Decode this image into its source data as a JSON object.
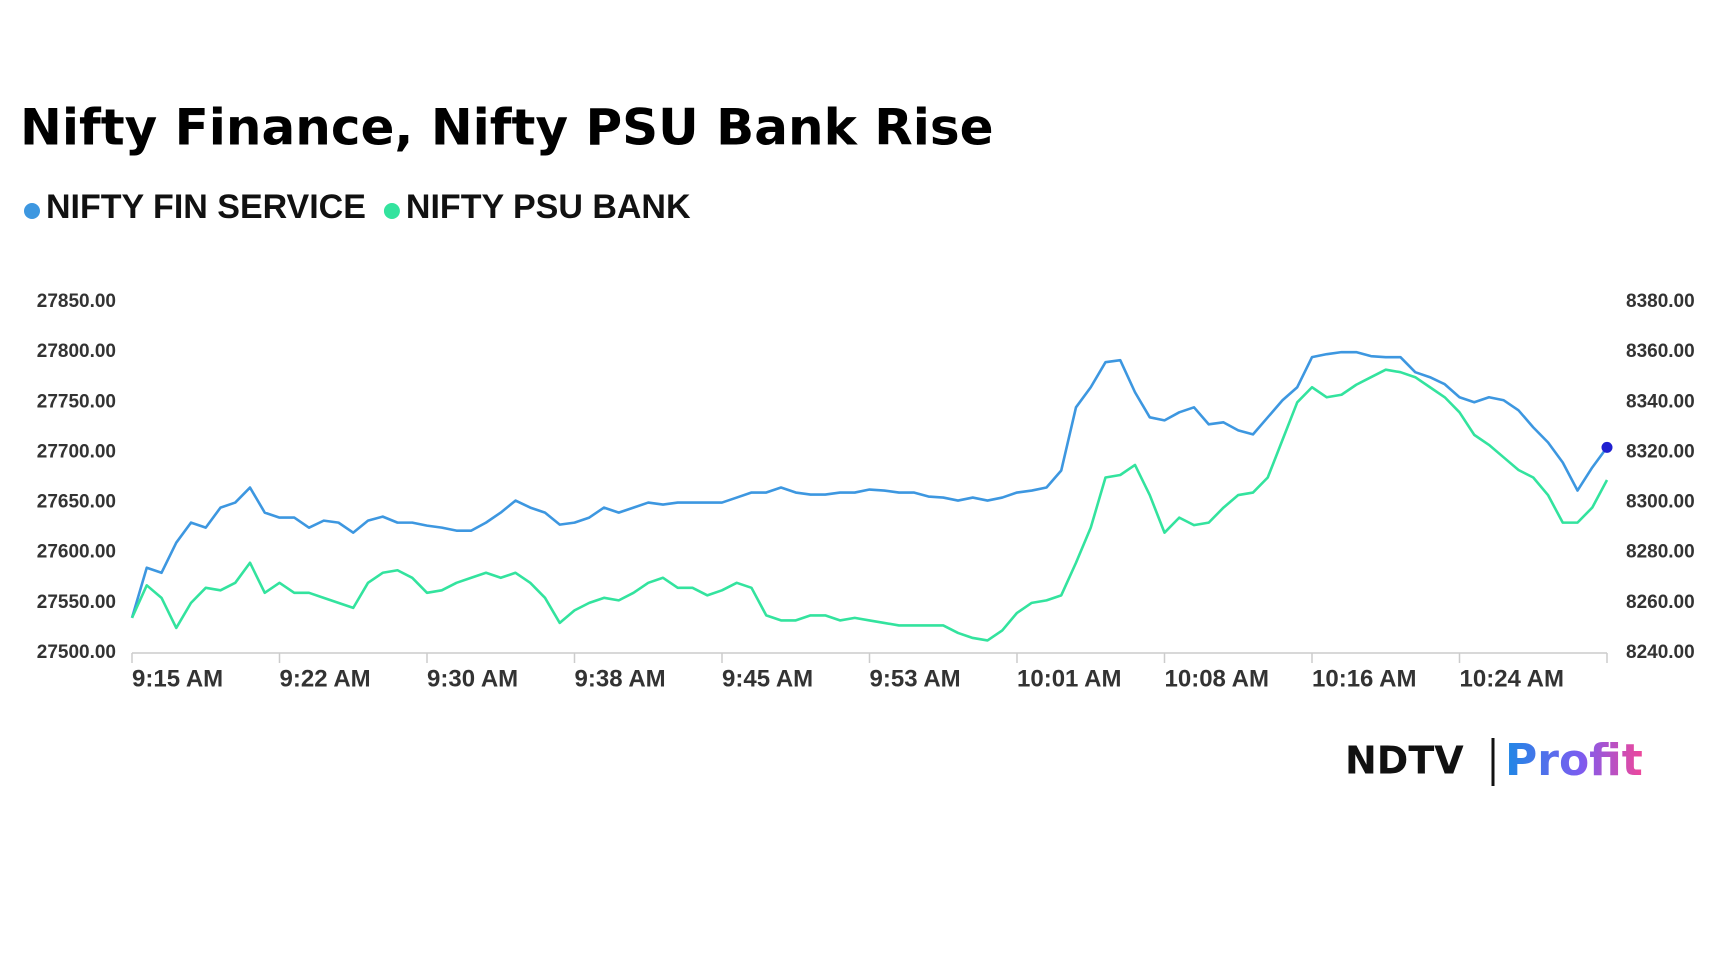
{
  "chart_data": {
    "type": "line",
    "title": "Nifty Finance, Nifty PSU Bank Rise",
    "categories": [
      "9:15 AM",
      null,
      null,
      null,
      null,
      null,
      null,
      null,
      null,
      null,
      "9:22 AM",
      null,
      null,
      null,
      null,
      null,
      null,
      null,
      null,
      null,
      "9:30 AM",
      null,
      null,
      null,
      null,
      null,
      null,
      null,
      null,
      null,
      "9:38 AM",
      null,
      null,
      null,
      null,
      null,
      null,
      null,
      null,
      null,
      "9:45 AM",
      null,
      null,
      null,
      null,
      null,
      null,
      null,
      null,
      null,
      "9:53 AM",
      null,
      null,
      null,
      null,
      null,
      null,
      null,
      null,
      null,
      "10:01 AM",
      null,
      null,
      null,
      null,
      null,
      null,
      null,
      null,
      null,
      "10:08 AM",
      null,
      null,
      null,
      null,
      null,
      null,
      null,
      null,
      null,
      "10:16 AM",
      null,
      null,
      null,
      null,
      null,
      null,
      null,
      null,
      null,
      "10:24 AM",
      null,
      null,
      null,
      null,
      null,
      null,
      null,
      null,
      null,
      null
    ],
    "series": [
      {
        "name": "NIFTY FIN SERVICE",
        "color": "#3d97e0",
        "axis": "y",
        "values": [
          27535,
          27585,
          27580,
          27610,
          27630,
          27625,
          27645,
          27650,
          27665,
          27640,
          27635,
          27635,
          27625,
          27632,
          27630,
          27620,
          27632,
          27636,
          27630,
          27630,
          27627,
          27625,
          27622,
          27622,
          27630,
          27640,
          27652,
          27645,
          27640,
          27628,
          27630,
          27635,
          27645,
          27640,
          27645,
          27650,
          27648,
          27650,
          27650,
          27650,
          27650,
          27655,
          27660,
          27660,
          27665,
          27660,
          27658,
          27658,
          27660,
          27660,
          27663,
          27662,
          27660,
          27660,
          27656,
          27655,
          27652,
          27655,
          27652,
          27655,
          27660,
          27662,
          27665,
          27682,
          27745,
          27765,
          27790,
          27792,
          27760,
          27735,
          27732,
          27740,
          27745,
          27728,
          27730,
          27722,
          27718,
          27735,
          27752,
          27765,
          27795,
          27798,
          27800,
          27800,
          27796,
          27795,
          27795,
          27780,
          27775,
          27768,
          27755,
          27750,
          27755,
          27752,
          27742,
          27725,
          27710,
          27690,
          27662,
          27685,
          27705
        ]
      },
      {
        "name": "NIFTY PSU BANK",
        "color": "#33e39e",
        "axis": "y2",
        "values": [
          8254,
          8267,
          8262,
          8250,
          8260,
          8266,
          8265,
          8268,
          8276,
          8264,
          8268,
          8264,
          8264,
          8262,
          8260,
          8258,
          8268,
          8272,
          8273,
          8270,
          8264,
          8265,
          8268,
          8270,
          8272,
          8270,
          8272,
          8268,
          8262,
          8252,
          8257,
          8260,
          8262,
          8261,
          8264,
          8268,
          8270,
          8266,
          8266,
          8263,
          8265,
          8268,
          8266,
          8255,
          8253,
          8253,
          8255,
          8255,
          8253,
          8254,
          8253,
          8252,
          8251,
          8251,
          8251,
          8251,
          8248,
          8246,
          8245,
          8249,
          8256,
          8260,
          8261,
          8263,
          8276,
          8290,
          8310,
          8311,
          8315,
          8303,
          8288,
          8294,
          8291,
          8292,
          8298,
          8303,
          8304,
          8310,
          8325,
          8340,
          8346,
          8342,
          8343,
          8347,
          8350,
          8353,
          8352,
          8350,
          8346,
          8342,
          8336,
          8327,
          8323,
          8318,
          8313,
          8310,
          8303,
          8292,
          8292,
          8298,
          8309
        ]
      }
    ],
    "ylim": [
      27500,
      27850
    ],
    "yticks": [
      {
        "value": 27500,
        "label": "27500.00"
      },
      {
        "value": 27550,
        "label": "27550.00"
      },
      {
        "value": 27600,
        "label": "27600.00"
      },
      {
        "value": 27650,
        "label": "27650.00"
      },
      {
        "value": 27700,
        "label": "27700.00"
      },
      {
        "value": 27750,
        "label": "27750.00"
      },
      {
        "value": 27800,
        "label": "27800.00"
      },
      {
        "value": 27850,
        "label": "27850.00"
      }
    ],
    "y2lim": [
      8240,
      8380
    ],
    "y2ticks": [
      {
        "value": 8240,
        "label": "8240.00"
      },
      {
        "value": 8260,
        "label": "8260.00"
      },
      {
        "value": 8280,
        "label": "8280.00"
      },
      {
        "value": 8300,
        "label": "8300.00"
      },
      {
        "value": 8320,
        "label": "8320.00"
      },
      {
        "value": 8340,
        "label": "8340.00"
      },
      {
        "value": 8360,
        "label": "8360.00"
      },
      {
        "value": 8380,
        "label": "8380.00"
      }
    ],
    "grid": false,
    "end_marker_color": "#1f1fd0"
  },
  "logo": {
    "left": "NDTV",
    "right": "Profit"
  }
}
